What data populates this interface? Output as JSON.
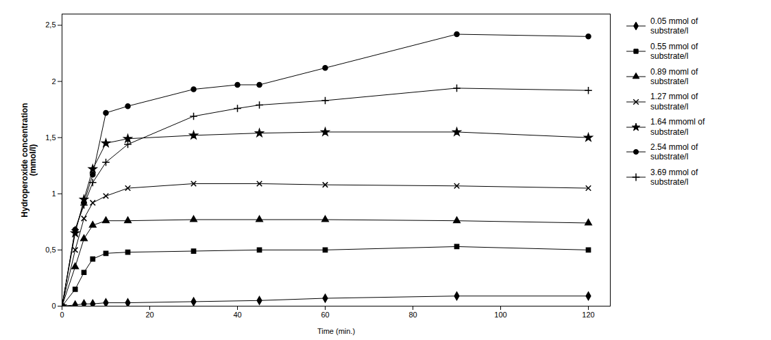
{
  "chart_data": {
    "type": "line",
    "xlabel": "Time (min.)",
    "ylabel": "Hydroperoxide concentration\n(mmol/l)",
    "xlim": [
      0,
      125
    ],
    "ylim": [
      0,
      2.6
    ],
    "xticks": [
      0,
      20,
      40,
      60,
      80,
      100,
      120
    ],
    "yticks": [
      0,
      {
        "value": 0.5,
        "label": "0,5"
      },
      1,
      {
        "value": 1.5,
        "label": "1,5"
      },
      2,
      {
        "value": 2.5,
        "label": "2,5"
      }
    ],
    "legend": "right",
    "series": [
      {
        "name": "0.05 mmol of\nsubstrate/l",
        "marker": "diamond",
        "color": "#000000",
        "x": [
          0,
          3,
          5,
          7,
          10,
          15,
          30,
          45,
          60,
          90,
          120
        ],
        "values": [
          0,
          0.01,
          0.02,
          0.02,
          0.03,
          0.03,
          0.04,
          0.05,
          0.07,
          0.09,
          0.09
        ]
      },
      {
        "name": "0.55 mmol of\nsubstrate/l",
        "marker": "square",
        "color": "#000000",
        "x": [
          0,
          3,
          5,
          7,
          10,
          15,
          30,
          45,
          60,
          90,
          120
        ],
        "values": [
          0,
          0.15,
          0.3,
          0.42,
          0.47,
          0.48,
          0.49,
          0.5,
          0.5,
          0.53,
          0.5
        ]
      },
      {
        "name": "0.89 moml of\nsubstrate/l",
        "marker": "triangle",
        "color": "#000000",
        "x": [
          0,
          3,
          5,
          7,
          10,
          15,
          30,
          45,
          60,
          90,
          120
        ],
        "values": [
          0,
          0.35,
          0.6,
          0.72,
          0.76,
          0.76,
          0.77,
          0.77,
          0.77,
          0.76,
          0.74
        ]
      },
      {
        "name": "1.27 mmol of\nsubstrate/l",
        "marker": "times",
        "color": "#000000",
        "x": [
          0,
          3,
          5,
          7,
          10,
          15,
          30,
          45,
          60,
          90,
          120
        ],
        "values": [
          0,
          0.5,
          0.78,
          0.92,
          0.98,
          1.05,
          1.09,
          1.09,
          1.08,
          1.07,
          1.05
        ]
      },
      {
        "name": "1.64 mmoml of\nsubstrate/l",
        "marker": "star",
        "color": "#000000",
        "x": [
          0,
          3,
          5,
          7,
          10,
          15,
          30,
          45,
          60,
          90,
          120
        ],
        "values": [
          0,
          0.65,
          0.95,
          1.22,
          1.45,
          1.49,
          1.52,
          1.54,
          1.55,
          1.55,
          1.5
        ]
      },
      {
        "name": "2.54 mmol of\nsubstrate/l",
        "marker": "circle",
        "color": "#000000",
        "x": [
          0,
          3,
          5,
          7,
          10,
          15,
          30,
          40,
          45,
          60,
          90,
          120
        ],
        "values": [
          0,
          0.68,
          0.92,
          1.17,
          1.72,
          1.78,
          1.93,
          1.97,
          1.97,
          2.12,
          2.42,
          2.4
        ]
      },
      {
        "name": "3.69 mmol of\nsubstrate/l",
        "marker": "plus",
        "color": "#000000",
        "x": [
          0,
          3,
          5,
          7,
          10,
          15,
          30,
          40,
          45,
          60,
          90,
          120
        ],
        "values": [
          0,
          0.68,
          0.9,
          1.1,
          1.28,
          1.44,
          1.69,
          1.76,
          1.79,
          1.83,
          1.94,
          1.92
        ]
      }
    ]
  }
}
